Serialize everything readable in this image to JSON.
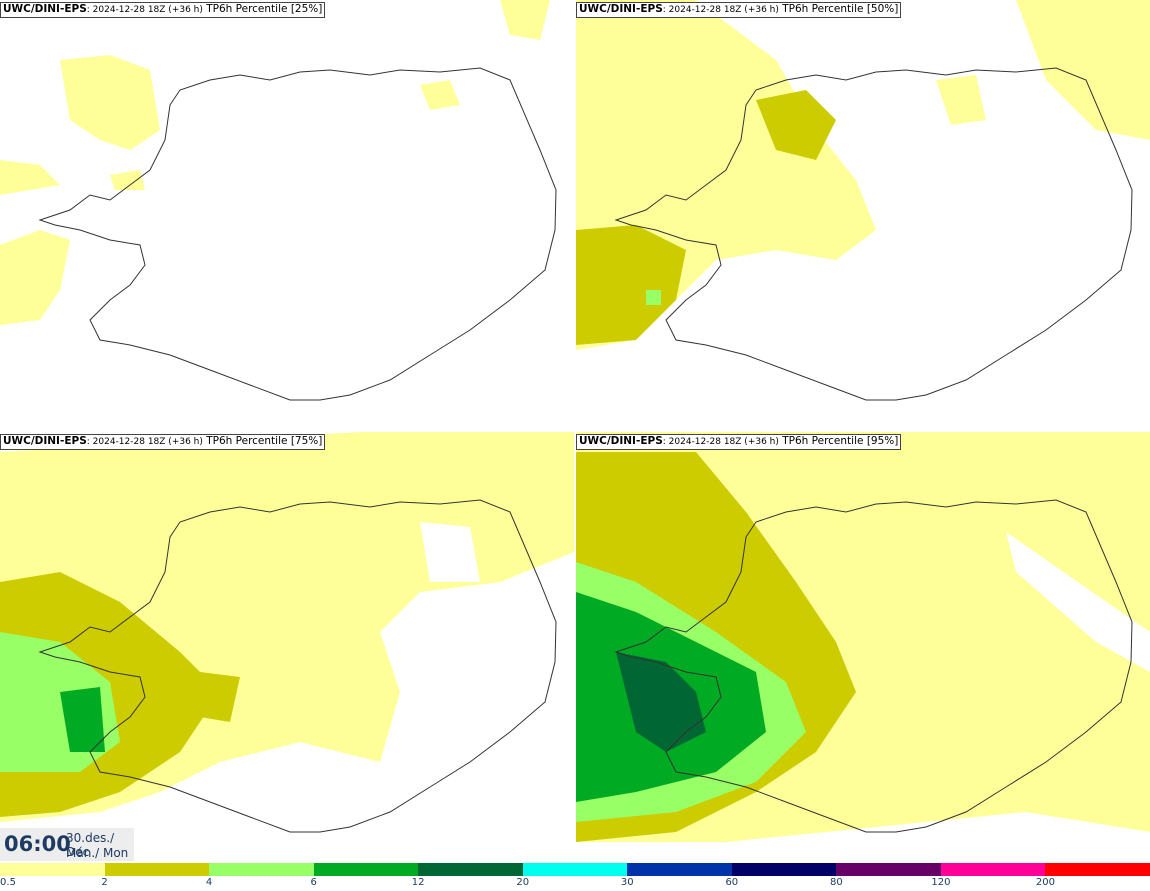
{
  "panels": [
    {
      "model": "UWC/DINI-EPS",
      "run": ": 2024-12-28 18Z (+36 h)",
      "product": "TP6h Percentile",
      "percentile": "[25%]"
    },
    {
      "model": "UWC/DINI-EPS",
      "run": ": 2024-12-28 18Z (+36 h)",
      "product": "TP6h Percentile",
      "percentile": "[50%]"
    },
    {
      "model": "UWC/DINI-EPS",
      "run": ": 2024-12-28 18Z (+36 h)",
      "product": "TP6h Percentile",
      "percentile": "[75%]"
    },
    {
      "model": "UWC/DINI-EPS",
      "run": ": 2024-12-28 18Z (+36 h)",
      "product": "TP6h Percentile",
      "percentile": "[95%]"
    }
  ],
  "valid_time": {
    "time": "06:00",
    "date_line": "30.des./ Dec",
    "day_line": "Mán./ Mon"
  },
  "legend": {
    "labels": [
      "0.5",
      "2",
      "4",
      "6",
      "12",
      "20",
      "30",
      "60",
      "80",
      "120",
      "200"
    ],
    "colors": [
      "#ffff99",
      "#cccc00",
      "#99ff66",
      "#00aa22",
      "#006633",
      "#00ffee",
      "#0033aa",
      "#000066",
      "#660066",
      "#ff0099",
      "#ff0000"
    ]
  },
  "colors": {
    "outline": "#333333",
    "land": "#ffffff"
  }
}
